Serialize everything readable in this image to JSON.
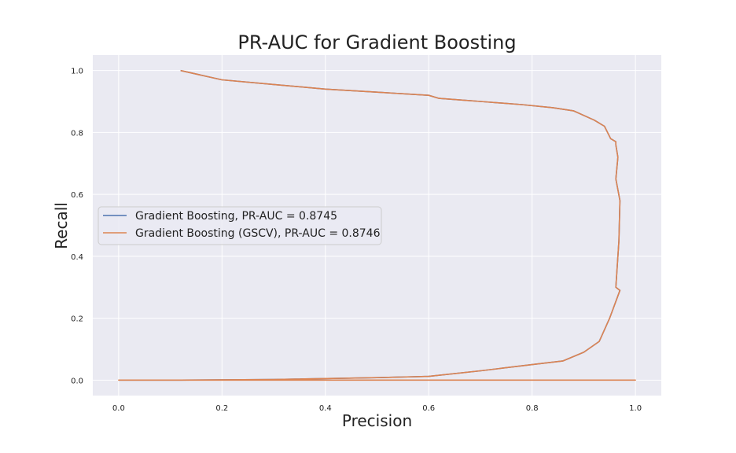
{
  "chart_data": {
    "type": "line",
    "title": "PR-AUC for Gradient Boosting",
    "xlabel": "Precision",
    "ylabel": "Recall",
    "xlim": [
      -0.05,
      1.05
    ],
    "ylim": [
      -0.05,
      1.05
    ],
    "xticks": [
      "0.0",
      "0.2",
      "0.4",
      "0.6",
      "0.8",
      "1.0"
    ],
    "yticks": [
      "0.0",
      "0.2",
      "0.4",
      "0.6",
      "0.8",
      "1.0"
    ],
    "grid": true,
    "legend_position": "center-left",
    "series": [
      {
        "name": "Gradient Boosting, PR-AUC = 0.8745",
        "color": "#4c72b0",
        "x": [
          0.0,
          0.12,
          0.3,
          0.5,
          0.6,
          0.7,
          0.8,
          0.86,
          0.9,
          0.93,
          0.95,
          0.97,
          0.962,
          0.968,
          0.97,
          0.962,
          0.966,
          0.962,
          0.962,
          0.952,
          0.94,
          0.92,
          0.88,
          0.84,
          0.78,
          0.7,
          0.62,
          0.6,
          0.5,
          0.4,
          0.3,
          0.2,
          0.12
        ],
        "y": [
          0.0,
          0.0,
          0.002,
          0.008,
          0.012,
          0.03,
          0.05,
          0.062,
          0.09,
          0.125,
          0.2,
          0.29,
          0.3,
          0.45,
          0.58,
          0.65,
          0.72,
          0.76,
          0.77,
          0.78,
          0.82,
          0.84,
          0.87,
          0.88,
          0.89,
          0.9,
          0.91,
          0.92,
          0.93,
          0.94,
          0.955,
          0.97,
          1.0
        ]
      },
      {
        "name": "Gradient Boosting (GSCV), PR-AUC = 0.8746",
        "color": "#dd8452",
        "x": [
          0.0,
          1.0,
          0.0,
          0.12,
          0.3,
          0.5,
          0.6,
          0.7,
          0.8,
          0.86,
          0.9,
          0.93,
          0.95,
          0.97,
          0.962,
          0.968,
          0.97,
          0.962,
          0.966,
          0.962,
          0.962,
          0.952,
          0.94,
          0.92,
          0.88,
          0.84,
          0.78,
          0.7,
          0.62,
          0.6,
          0.5,
          0.4,
          0.3,
          0.2,
          0.12
        ],
        "y": [
          0.0,
          0.0,
          0.0,
          0.0,
          0.002,
          0.008,
          0.012,
          0.03,
          0.05,
          0.062,
          0.09,
          0.125,
          0.2,
          0.29,
          0.3,
          0.45,
          0.58,
          0.65,
          0.72,
          0.76,
          0.77,
          0.78,
          0.82,
          0.84,
          0.87,
          0.88,
          0.89,
          0.9,
          0.91,
          0.92,
          0.93,
          0.94,
          0.955,
          0.97,
          1.0
        ]
      }
    ]
  }
}
